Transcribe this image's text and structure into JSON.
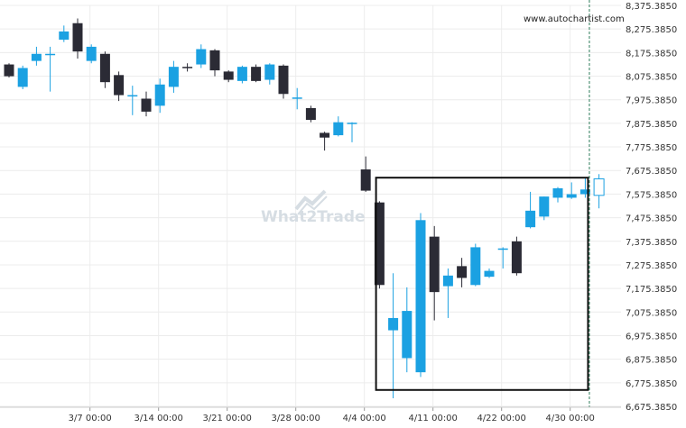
{
  "source_label": "www.autochartist.com",
  "watermark": "What2Trade",
  "colors": {
    "bull": "#1ba1e2",
    "bear": "#2b2b35",
    "grid": "#ececec",
    "box": "#111111",
    "current": "#2e7d5b"
  },
  "chart_data": {
    "type": "candlestick",
    "y_axis": {
      "min": 6675.385,
      "max": 8375.385,
      "step": 100,
      "position": "right",
      "ticks": [
        "8,375.3850",
        "8,275.3850",
        "8,175.3850",
        "8,075.3850",
        "7,975.3850",
        "7,875.3850",
        "7,775.3850",
        "7,675.3850",
        "7,575.3850",
        "7,475.3850",
        "7,375.3850",
        "7,275.3850",
        "7,175.3850",
        "7,075.3850",
        "6,975.3850",
        "6,875.3850",
        "6,775.3850",
        "6,675.3850"
      ]
    },
    "x_ticks": [
      {
        "label": "3/7 00:00",
        "index": 5.9
      },
      {
        "label": "3/14 00:00",
        "index": 10.9
      },
      {
        "label": "3/21 00:00",
        "index": 15.9
      },
      {
        "label": "3/28 00:00",
        "index": 20.9
      },
      {
        "label": "4/4 00:00",
        "index": 25.9
      },
      {
        "label": "4/11 00:00",
        "index": 30.9
      },
      {
        "label": "4/22 00:00",
        "index": 35.9
      },
      {
        "label": "4/30 00:00",
        "index": 40.9
      }
    ],
    "grid": true,
    "candles": [
      {
        "o": 8125,
        "h": 8130,
        "l": 8070,
        "c": 8075
      },
      {
        "o": 8030,
        "h": 8120,
        "l": 8020,
        "c": 8110
      },
      {
        "o": 8140,
        "h": 8200,
        "l": 8120,
        "c": 8170
      },
      {
        "o": 8170,
        "h": 8200,
        "l": 8010,
        "c": 8170
      },
      {
        "o": 8230,
        "h": 8290,
        "l": 8220,
        "c": 8265
      },
      {
        "o": 8300,
        "h": 8320,
        "l": 8150,
        "c": 8180
      },
      {
        "o": 8140,
        "h": 8210,
        "l": 8130,
        "c": 8200
      },
      {
        "o": 8170,
        "h": 8180,
        "l": 8025,
        "c": 8050
      },
      {
        "o": 8080,
        "h": 8095,
        "l": 7970,
        "c": 7995
      },
      {
        "o": 7995,
        "h": 8035,
        "l": 7910,
        "c": 7995
      },
      {
        "o": 7980,
        "h": 8010,
        "l": 7905,
        "c": 7925
      },
      {
        "o": 7950,
        "h": 8065,
        "l": 7920,
        "c": 8040
      },
      {
        "o": 8030,
        "h": 8140,
        "l": 8005,
        "c": 8115
      },
      {
        "o": 8115,
        "h": 8130,
        "l": 8095,
        "c": 8110
      },
      {
        "o": 8125,
        "h": 8210,
        "l": 8110,
        "c": 8190
      },
      {
        "o": 8185,
        "h": 8190,
        "l": 8075,
        "c": 8100
      },
      {
        "o": 8095,
        "h": 8100,
        "l": 8050,
        "c": 8060
      },
      {
        "o": 8055,
        "h": 8120,
        "l": 8045,
        "c": 8115
      },
      {
        "o": 8115,
        "h": 8125,
        "l": 8050,
        "c": 8055
      },
      {
        "o": 8060,
        "h": 8130,
        "l": 8040,
        "c": 8125
      },
      {
        "o": 8120,
        "h": 8125,
        "l": 7980,
        "c": 8000
      },
      {
        "o": 7985,
        "h": 8025,
        "l": 7935,
        "c": 7985
      },
      {
        "o": 7940,
        "h": 7950,
        "l": 7880,
        "c": 7890
      },
      {
        "o": 7835,
        "h": 7840,
        "l": 7760,
        "c": 7815
      },
      {
        "o": 7825,
        "h": 7905,
        "l": 7820,
        "c": 7880
      },
      {
        "o": 7875,
        "h": 7880,
        "l": 7795,
        "c": 7878
      },
      {
        "o": 7680,
        "h": 7735,
        "l": 7585,
        "c": 7590
      },
      {
        "o": 7540,
        "h": 7545,
        "l": 7175,
        "c": 7190
      },
      {
        "o": 6998,
        "h": 7240,
        "l": 6710,
        "c": 7050
      },
      {
        "o": 6880,
        "h": 7180,
        "l": 6820,
        "c": 7080
      },
      {
        "o": 6820,
        "h": 7495,
        "l": 6800,
        "c": 7465
      },
      {
        "o": 7395,
        "h": 7440,
        "l": 7040,
        "c": 7160
      },
      {
        "o": 7185,
        "h": 7260,
        "l": 7050,
        "c": 7230
      },
      {
        "o": 7270,
        "h": 7305,
        "l": 7180,
        "c": 7220
      },
      {
        "o": 7190,
        "h": 7365,
        "l": 7185,
        "c": 7350
      },
      {
        "o": 7225,
        "h": 7260,
        "l": 7220,
        "c": 7250
      },
      {
        "o": 7345,
        "h": 7350,
        "l": 7260,
        "c": 7345
      },
      {
        "o": 7375,
        "h": 7395,
        "l": 7230,
        "c": 7240
      },
      {
        "o": 7435,
        "h": 7585,
        "l": 7430,
        "c": 7505
      },
      {
        "o": 7480,
        "h": 7565,
        "l": 7465,
        "c": 7565
      },
      {
        "o": 7560,
        "h": 7605,
        "l": 7540,
        "c": 7600
      },
      {
        "o": 7560,
        "h": 7625,
        "l": 7555,
        "c": 7575
      },
      {
        "o": 7575,
        "h": 7645,
        "l": 7560,
        "c": 7595
      },
      {
        "o": 7570,
        "h": 7660,
        "l": 7515,
        "c": 7640,
        "hollow": true
      }
    ],
    "pattern_box": {
      "start_index": 26.75,
      "end_index": 42.2,
      "high": 7645,
      "low": 6745
    },
    "current_time_index": 42.3
  }
}
